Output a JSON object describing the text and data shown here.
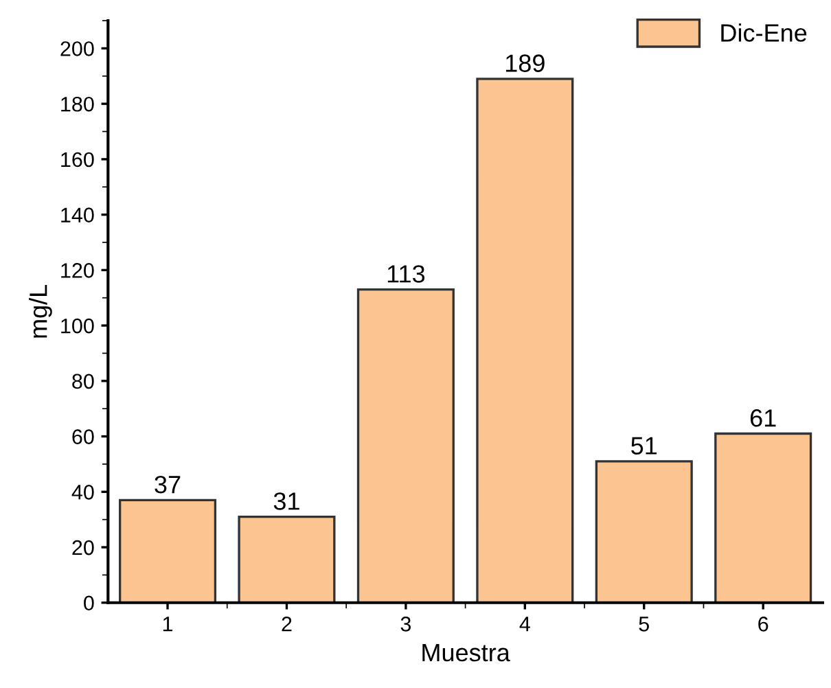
{
  "chart_data": {
    "type": "bar",
    "xlabel": "Muestra",
    "ylabel": "mg/L",
    "categories": [
      "1",
      "2",
      "3",
      "4",
      "5",
      "6"
    ],
    "series": [
      {
        "name": "Dic-Ene",
        "color": "#fbc490",
        "values": [
          37,
          31,
          113,
          189,
          51,
          61
        ]
      }
    ],
    "ylim": [
      0,
      210
    ],
    "yticks": [
      0,
      20,
      40,
      60,
      80,
      100,
      120,
      140,
      160,
      180,
      200
    ],
    "data_labels": true,
    "legend": "top right",
    "grid": false
  }
}
